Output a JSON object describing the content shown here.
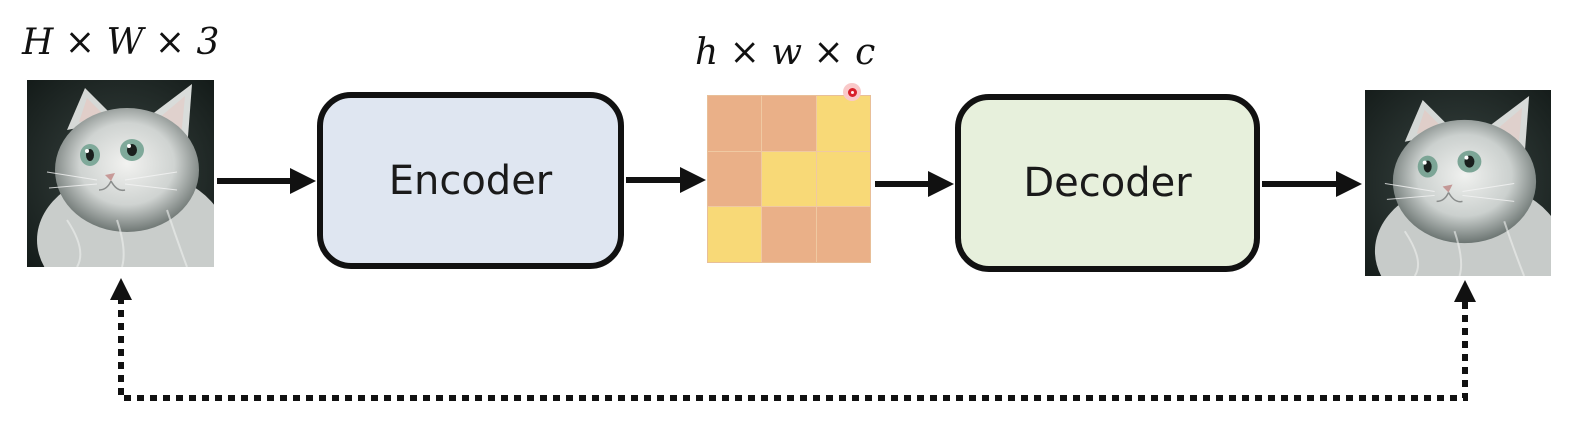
{
  "input": {
    "dims_label": "H × W × 3",
    "image_name": "cat-photo-input"
  },
  "encoder": {
    "label": "Encoder",
    "color": "#dfe6f1"
  },
  "latent": {
    "dims_label": "h × w × c",
    "grid": [
      [
        "orange",
        "orange",
        "yellow"
      ],
      [
        "orange",
        "yellow",
        "yellow"
      ],
      [
        "yellow",
        "orange",
        "orange"
      ]
    ],
    "colors": {
      "orange": "#eab088",
      "yellow": "#f8d977"
    }
  },
  "decoder": {
    "label": "Decoder",
    "color": "#e7f0dc"
  },
  "output": {
    "image_name": "cat-photo-reconstruction"
  },
  "icons": {
    "cursor": "cursor-highlight-icon"
  }
}
